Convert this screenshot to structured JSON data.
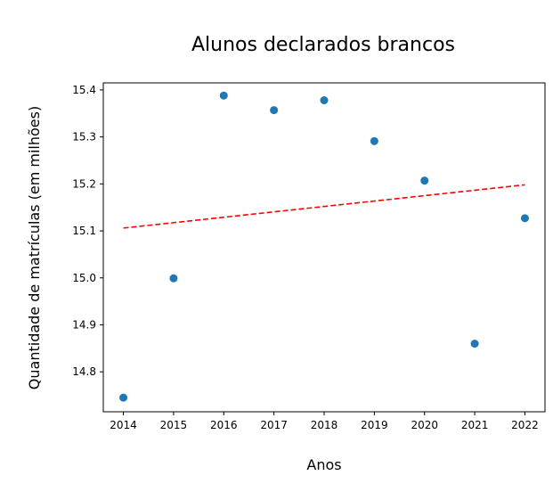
{
  "chart_data": {
    "type": "scatter",
    "title": "Alunos declarados brancos",
    "xlabel": "Anos",
    "ylabel": "Quantidade de matrículas (em milhões)",
    "xlim": [
      2013.6,
      2022.4
    ],
    "ylim": [
      14.715,
      15.415
    ],
    "x_ticks": [
      2014,
      2015,
      2016,
      2017,
      2018,
      2019,
      2020,
      2021,
      2022
    ],
    "y_ticks": [
      14.8,
      14.9,
      15.0,
      15.1,
      15.2,
      15.3,
      15.4
    ],
    "y_tick_labels": [
      "14.8",
      "14.9",
      "15.0",
      "15.1",
      "15.2",
      "15.3",
      "15.4"
    ],
    "grid": false,
    "series": [
      {
        "x": [
          2014,
          2015,
          2016,
          2017,
          2018,
          2019,
          2020,
          2021,
          2022
        ],
        "y": [
          14.745,
          14.999,
          15.388,
          15.357,
          15.378,
          15.291,
          15.207,
          14.86,
          15.127
        ],
        "color": "#1f77b4"
      }
    ],
    "trendline": {
      "x": [
        2014,
        2022
      ],
      "y": [
        15.106,
        15.198
      ],
      "color": "#ff0000",
      "style": "dashed"
    }
  }
}
